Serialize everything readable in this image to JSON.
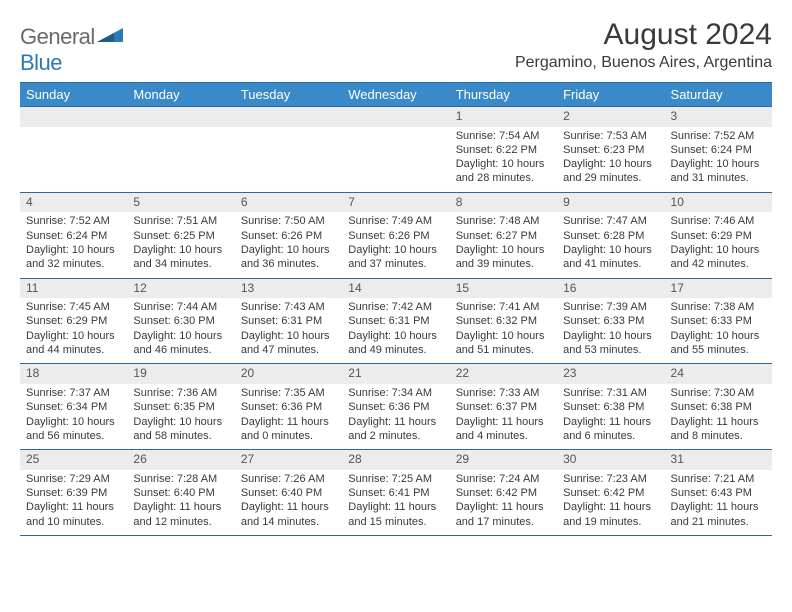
{
  "logo": {
    "general": "General",
    "blue": "Blue"
  },
  "title": "August 2024",
  "location": "Pergamino, Buenos Aires, Argentina",
  "colors": {
    "header_bg": "#3a8ac9",
    "header_border": "#2a6aa0",
    "daynum_bg": "#ececec",
    "text": "#3a3a3a",
    "logo_gray": "#6a6a6a",
    "logo_blue": "#2a7ab8"
  },
  "weekdays": [
    "Sunday",
    "Monday",
    "Tuesday",
    "Wednesday",
    "Thursday",
    "Friday",
    "Saturday"
  ],
  "weeks": [
    [
      null,
      null,
      null,
      null,
      {
        "n": "1",
        "sr": "Sunrise: 7:54 AM",
        "ss": "Sunset: 6:22 PM",
        "dl": "Daylight: 10 hours and 28 minutes."
      },
      {
        "n": "2",
        "sr": "Sunrise: 7:53 AM",
        "ss": "Sunset: 6:23 PM",
        "dl": "Daylight: 10 hours and 29 minutes."
      },
      {
        "n": "3",
        "sr": "Sunrise: 7:52 AM",
        "ss": "Sunset: 6:24 PM",
        "dl": "Daylight: 10 hours and 31 minutes."
      }
    ],
    [
      {
        "n": "4",
        "sr": "Sunrise: 7:52 AM",
        "ss": "Sunset: 6:24 PM",
        "dl": "Daylight: 10 hours and 32 minutes."
      },
      {
        "n": "5",
        "sr": "Sunrise: 7:51 AM",
        "ss": "Sunset: 6:25 PM",
        "dl": "Daylight: 10 hours and 34 minutes."
      },
      {
        "n": "6",
        "sr": "Sunrise: 7:50 AM",
        "ss": "Sunset: 6:26 PM",
        "dl": "Daylight: 10 hours and 36 minutes."
      },
      {
        "n": "7",
        "sr": "Sunrise: 7:49 AM",
        "ss": "Sunset: 6:26 PM",
        "dl": "Daylight: 10 hours and 37 minutes."
      },
      {
        "n": "8",
        "sr": "Sunrise: 7:48 AM",
        "ss": "Sunset: 6:27 PM",
        "dl": "Daylight: 10 hours and 39 minutes."
      },
      {
        "n": "9",
        "sr": "Sunrise: 7:47 AM",
        "ss": "Sunset: 6:28 PM",
        "dl": "Daylight: 10 hours and 41 minutes."
      },
      {
        "n": "10",
        "sr": "Sunrise: 7:46 AM",
        "ss": "Sunset: 6:29 PM",
        "dl": "Daylight: 10 hours and 42 minutes."
      }
    ],
    [
      {
        "n": "11",
        "sr": "Sunrise: 7:45 AM",
        "ss": "Sunset: 6:29 PM",
        "dl": "Daylight: 10 hours and 44 minutes."
      },
      {
        "n": "12",
        "sr": "Sunrise: 7:44 AM",
        "ss": "Sunset: 6:30 PM",
        "dl": "Daylight: 10 hours and 46 minutes."
      },
      {
        "n": "13",
        "sr": "Sunrise: 7:43 AM",
        "ss": "Sunset: 6:31 PM",
        "dl": "Daylight: 10 hours and 47 minutes."
      },
      {
        "n": "14",
        "sr": "Sunrise: 7:42 AM",
        "ss": "Sunset: 6:31 PM",
        "dl": "Daylight: 10 hours and 49 minutes."
      },
      {
        "n": "15",
        "sr": "Sunrise: 7:41 AM",
        "ss": "Sunset: 6:32 PM",
        "dl": "Daylight: 10 hours and 51 minutes."
      },
      {
        "n": "16",
        "sr": "Sunrise: 7:39 AM",
        "ss": "Sunset: 6:33 PM",
        "dl": "Daylight: 10 hours and 53 minutes."
      },
      {
        "n": "17",
        "sr": "Sunrise: 7:38 AM",
        "ss": "Sunset: 6:33 PM",
        "dl": "Daylight: 10 hours and 55 minutes."
      }
    ],
    [
      {
        "n": "18",
        "sr": "Sunrise: 7:37 AM",
        "ss": "Sunset: 6:34 PM",
        "dl": "Daylight: 10 hours and 56 minutes."
      },
      {
        "n": "19",
        "sr": "Sunrise: 7:36 AM",
        "ss": "Sunset: 6:35 PM",
        "dl": "Daylight: 10 hours and 58 minutes."
      },
      {
        "n": "20",
        "sr": "Sunrise: 7:35 AM",
        "ss": "Sunset: 6:36 PM",
        "dl": "Daylight: 11 hours and 0 minutes."
      },
      {
        "n": "21",
        "sr": "Sunrise: 7:34 AM",
        "ss": "Sunset: 6:36 PM",
        "dl": "Daylight: 11 hours and 2 minutes."
      },
      {
        "n": "22",
        "sr": "Sunrise: 7:33 AM",
        "ss": "Sunset: 6:37 PM",
        "dl": "Daylight: 11 hours and 4 minutes."
      },
      {
        "n": "23",
        "sr": "Sunrise: 7:31 AM",
        "ss": "Sunset: 6:38 PM",
        "dl": "Daylight: 11 hours and 6 minutes."
      },
      {
        "n": "24",
        "sr": "Sunrise: 7:30 AM",
        "ss": "Sunset: 6:38 PM",
        "dl": "Daylight: 11 hours and 8 minutes."
      }
    ],
    [
      {
        "n": "25",
        "sr": "Sunrise: 7:29 AM",
        "ss": "Sunset: 6:39 PM",
        "dl": "Daylight: 11 hours and 10 minutes."
      },
      {
        "n": "26",
        "sr": "Sunrise: 7:28 AM",
        "ss": "Sunset: 6:40 PM",
        "dl": "Daylight: 11 hours and 12 minutes."
      },
      {
        "n": "27",
        "sr": "Sunrise: 7:26 AM",
        "ss": "Sunset: 6:40 PM",
        "dl": "Daylight: 11 hours and 14 minutes."
      },
      {
        "n": "28",
        "sr": "Sunrise: 7:25 AM",
        "ss": "Sunset: 6:41 PM",
        "dl": "Daylight: 11 hours and 15 minutes."
      },
      {
        "n": "29",
        "sr": "Sunrise: 7:24 AM",
        "ss": "Sunset: 6:42 PM",
        "dl": "Daylight: 11 hours and 17 minutes."
      },
      {
        "n": "30",
        "sr": "Sunrise: 7:23 AM",
        "ss": "Sunset: 6:42 PM",
        "dl": "Daylight: 11 hours and 19 minutes."
      },
      {
        "n": "31",
        "sr": "Sunrise: 7:21 AM",
        "ss": "Sunset: 6:43 PM",
        "dl": "Daylight: 11 hours and 21 minutes."
      }
    ]
  ]
}
